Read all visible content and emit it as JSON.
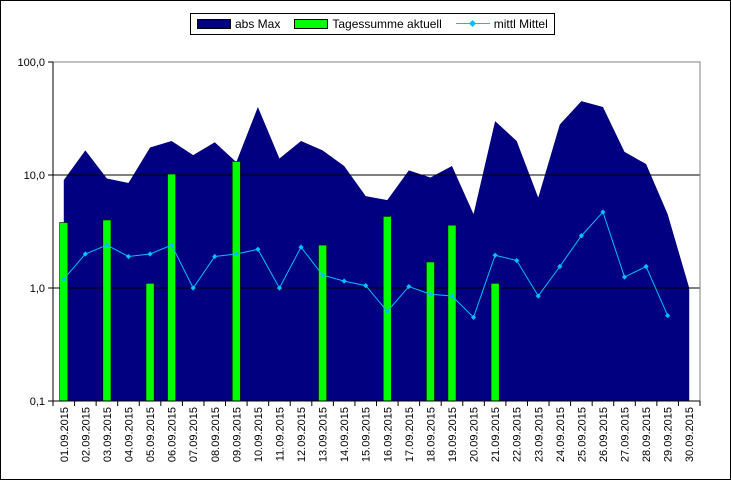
{
  "chart_data": {
    "type": "bar",
    "categories": [
      "01.09.2015",
      "02.09.2015",
      "03.09.2015",
      "04.09.2015",
      "05.09.2015",
      "06.09.2015",
      "07.09.2015",
      "08.09.2015",
      "09.09.2015",
      "10.09.2015",
      "11.09.2015",
      "12.09.2015",
      "13.09.2015",
      "14.09.2015",
      "15.09.2015",
      "16.09.2015",
      "17.09.2015",
      "18.09.2015",
      "19.09.2015",
      "20.09.2015",
      "21.09.2015",
      "22.09.2015",
      "23.09.2015",
      "24.09.2015",
      "25.09.2015",
      "26.09.2015",
      "27.09.2015",
      "28.09.2015",
      "29.09.2015",
      "30.09.2015"
    ],
    "x_tick_labels": [
      "01.09.2015",
      "02.09.2015",
      "03.09.2015",
      "04.09.2015",
      "05.09.2015",
      "06.09.2015",
      "07.09.2015",
      "08.09.2015",
      "09.09.2015",
      "10.09.2015",
      "11.09.2015",
      "12.09.2015",
      "13.09.2015",
      "14.09.2015",
      "15.09.2015",
      "16.09.2015",
      "17.09.2015",
      "18.09.2015",
      "19.09.2015",
      "20.09.2015",
      "21.09.2015",
      "22.09.2015",
      "23.09.2015",
      "24.09.2015",
      "25.09.2015",
      "26.09.2015",
      "27.09.2015",
      "28.09.2015",
      "29.09.2015",
      "30.09.2015"
    ],
    "y_tick_labels": [
      "100,0",
      "10,0",
      "1,0",
      "0,1"
    ],
    "yscale": "log",
    "ylim": [
      0.1,
      100
    ],
    "legend_position": "top",
    "grid": "horizontal major lines",
    "series": [
      {
        "name": "abs Max",
        "kind": "area",
        "color": "#000080",
        "values": [
          9.0,
          16.5,
          9.3,
          8.5,
          17.5,
          20.0,
          15.0,
          19.5,
          13.0,
          40.0,
          14.0,
          20.0,
          16.5,
          12.0,
          6.5,
          6.0,
          11.0,
          9.5,
          12.0,
          4.5,
          30.0,
          20.0,
          6.3,
          28.0,
          45.0,
          40.0,
          16.0,
          12.5,
          4.5,
          1.0
        ]
      },
      {
        "name": "Tagessumme aktuell",
        "kind": "bar",
        "color": "#00FF00",
        "values": [
          3.8,
          null,
          4.0,
          null,
          1.1,
          10.2,
          null,
          null,
          13.2,
          null,
          null,
          null,
          2.4,
          null,
          null,
          4.3,
          null,
          1.7,
          3.6,
          null,
          1.1,
          null,
          null,
          null,
          null,
          null,
          null,
          null,
          null,
          null
        ]
      },
      {
        "name": "mittl Mittel",
        "kind": "line",
        "color": "#00BFFF",
        "values": [
          1.2,
          2.0,
          2.4,
          1.9,
          2.0,
          2.4,
          1.0,
          1.9,
          2.0,
          2.2,
          1.0,
          2.3,
          1.3,
          1.15,
          1.05,
          0.62,
          1.03,
          0.88,
          0.85,
          0.55,
          1.95,
          1.75,
          0.85,
          1.55,
          2.9,
          4.7,
          1.25,
          1.55,
          0.57,
          null
        ]
      }
    ]
  }
}
